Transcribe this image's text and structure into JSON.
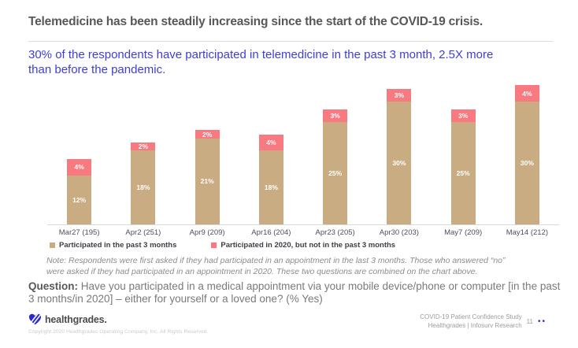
{
  "slide": {
    "title": "Telemedicine has been steadily increasing since the start of the COVID-19 crisis.",
    "subtitle": "30% of the respondents have participated in telemedicine in the past 3 month, 2.5X more\nthan before the pandemic.",
    "note": "Note: Respondents were first asked if they had participated in an appointment in the last 3 months. Those who answered “no”\nwere asked if they had participated in an appointment in 2020. These two questions are combined on the chart above.",
    "question_label": "Question:",
    "question_text": " Have you participated in a medical appointment via your mobile device/phone or computer [in the past\n3 months/in 2020] – either for yourself or a loved one? (% Yes)"
  },
  "chart_data": {
    "type": "bar",
    "stacked": true,
    "categories": [
      "Mar27 (195)",
      "Apr2 (251)",
      "Apr9 (209)",
      "Apr16 (204)",
      "Apr23 (205)",
      "Apr30 (203)",
      "May7 (209)",
      "May14 (212)"
    ],
    "series": [
      {
        "name": "Participated in the past 3 months",
        "color": "#c9ac82",
        "values": [
          12,
          18,
          21,
          18,
          25,
          30,
          25,
          30
        ]
      },
      {
        "name": "Participated in 2020, but not in the past 3 months",
        "color": "#f8797f",
        "values": [
          4,
          2,
          2,
          4,
          3,
          3,
          3,
          4
        ]
      }
    ],
    "value_suffix": "%",
    "data_label_color": "#ffffff",
    "ylim": [
      0,
      35
    ],
    "gridlines": false,
    "legend_position": "bottom",
    "xlabel": "",
    "ylabel": ""
  },
  "colors": {
    "subtitle_blue": "#3e3ed6",
    "title_gray": "#57585a",
    "accent_blue": "#2b2bd6"
  },
  "footer": {
    "logo_text": "healthgrades",
    "logo_period": ".",
    "copyright": "Copyright 2020 Healthgrades Operating Company, Inc. All Rights Reserved.",
    "study_line1": "COVID-19 Patient Confidence Study",
    "study_line2": "Healthgrades  |  Infosurv Research",
    "page_number": "11",
    "nav_dots": "••"
  }
}
